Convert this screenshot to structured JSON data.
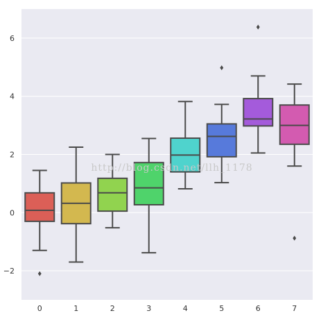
{
  "chart_data": {
    "type": "box",
    "categories": [
      "0",
      "1",
      "2",
      "3",
      "4",
      "5",
      "6",
      "7"
    ],
    "colors": [
      "#db5f57",
      "#d3b84f",
      "#91d34f",
      "#4fd36b",
      "#4fd3cd",
      "#577adb",
      "#a45bdb",
      "#d35bb0"
    ],
    "boxes": [
      {
        "category": "0",
        "whislo": -1.3,
        "q1": -0.3,
        "med": 0.08,
        "q3": 0.68,
        "whishi": 1.45,
        "fliers": [
          -2.1
        ]
      },
      {
        "category": "1",
        "whislo": -1.7,
        "q1": -0.38,
        "med": 0.32,
        "q3": 1.02,
        "whishi": 2.25,
        "fliers": []
      },
      {
        "category": "2",
        "whislo": -0.52,
        "q1": 0.05,
        "med": 0.68,
        "q3": 1.18,
        "whishi": 2.0,
        "fliers": []
      },
      {
        "category": "3",
        "whislo": -1.38,
        "q1": 0.27,
        "med": 0.85,
        "q3": 1.72,
        "whishi": 2.55,
        "fliers": []
      },
      {
        "category": "4",
        "whislo": 0.82,
        "q1": 1.4,
        "med": 1.98,
        "q3": 2.56,
        "whishi": 3.82,
        "fliers": []
      },
      {
        "category": "5",
        "whislo": 1.03,
        "q1": 1.92,
        "med": 2.62,
        "q3": 3.05,
        "whishi": 3.72,
        "fliers": [
          4.98
        ]
      },
      {
        "category": "6",
        "whislo": 2.05,
        "q1": 2.98,
        "med": 3.22,
        "q3": 3.92,
        "whishi": 4.7,
        "fliers": [
          6.38
        ]
      },
      {
        "category": "7",
        "whislo": 1.6,
        "q1": 2.35,
        "med": 3.0,
        "q3": 3.7,
        "whishi": 4.42,
        "fliers": [
          -0.88
        ]
      }
    ],
    "yticks": [
      -2,
      0,
      2,
      4,
      6
    ],
    "ylim": [
      -3.0,
      7.0
    ],
    "grid": true,
    "title": "",
    "xlabel": "",
    "ylabel": "",
    "watermark": "http://blog.csdn.net/llh_1178"
  }
}
